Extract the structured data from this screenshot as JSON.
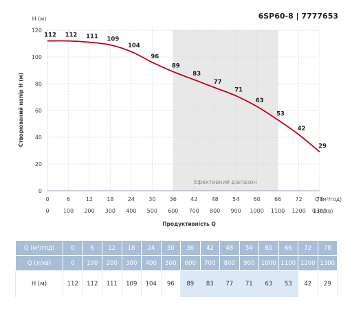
{
  "header": {
    "model": "6SP60-8 | 7777653"
  },
  "chart_data": {
    "type": "line",
    "ylabel": "Створюваний напір H (м)",
    "y_unit_label": "H (м)",
    "xlabel": "Продуктивність Q",
    "x_unit_label_top": "Q (м³/год)",
    "x_unit_label_bottom": "Q (л/хв)",
    "ylim": [
      0,
      120
    ],
    "y_ticks": [
      "0",
      "20",
      "40",
      "60",
      "80",
      "100",
      "120"
    ],
    "x_ticks_top": [
      "0",
      "6",
      "12",
      "18",
      "24",
      "30",
      "36",
      "42",
      "48",
      "54",
      "60",
      "66",
      "72",
      "78"
    ],
    "x_ticks_bottom": [
      "0",
      "100",
      "200",
      "300",
      "400",
      "500",
      "600",
      "700",
      "800",
      "900",
      "1000",
      "1100",
      "1200",
      "1300"
    ],
    "x": [
      0,
      6,
      12,
      18,
      24,
      30,
      36,
      42,
      48,
      54,
      60,
      66,
      72,
      78
    ],
    "y": [
      112,
      112,
      111,
      109,
      104,
      96,
      89,
      83,
      77,
      71,
      63,
      53,
      42,
      29
    ],
    "point_labels": [
      "112",
      "112",
      "111",
      "109",
      "104",
      "96",
      "89",
      "83",
      "77",
      "71",
      "63",
      "53",
      "42",
      "29"
    ],
    "efficient_range": {
      "from": 36,
      "to": 66,
      "label": "Ефективний діапазон"
    },
    "grid": true,
    "curve_color": "#c0001a",
    "range_color": "#e8e8e8"
  },
  "table": {
    "rows": [
      {
        "label": "Q (м³/год)",
        "values": [
          "0",
          "6",
          "12",
          "18",
          "24",
          "30",
          "36",
          "42",
          "48",
          "54",
          "60",
          "66",
          "72",
          "78"
        ]
      },
      {
        "label": "Q (л/хв)",
        "values": [
          "0",
          "100",
          "200",
          "300",
          "400",
          "500",
          "600",
          "700",
          "800",
          "900",
          "1000",
          "1100",
          "1200",
          "1300"
        ]
      },
      {
        "label": "H (м)",
        "values": [
          "112",
          "112",
          "111",
          "109",
          "104",
          "96",
          "89",
          "83",
          "77",
          "71",
          "63",
          "53",
          "42",
          "29"
        ]
      }
    ],
    "highlight_cols": [
      6,
      7,
      8,
      9,
      10,
      11
    ],
    "header_color": "#a8bed6",
    "highlight_color": "#dce8f5"
  }
}
